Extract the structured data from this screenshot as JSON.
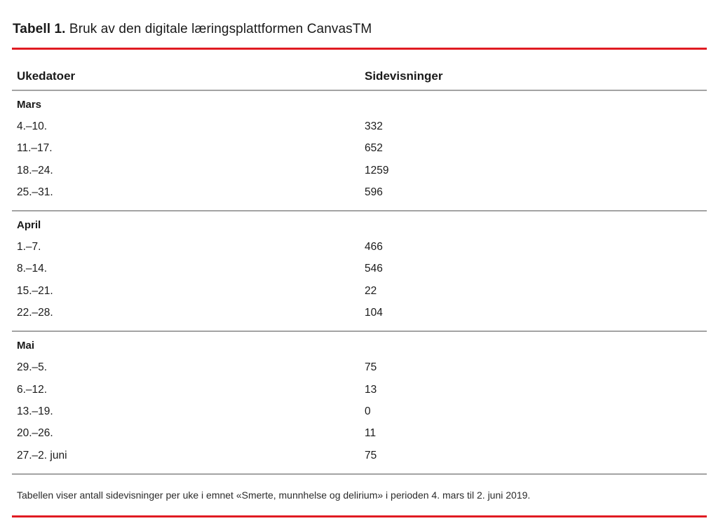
{
  "title": {
    "label": "Tabell 1.",
    "rest": "Bruk av den digitale læringsplattformen CanvasTM"
  },
  "table": {
    "headers": [
      "Ukedatoer",
      "Sidevisninger"
    ],
    "sections": [
      {
        "name": "Mars",
        "rows": [
          {
            "dates": "4.–10.",
            "views": "332"
          },
          {
            "dates": "11.–17.",
            "views": "652"
          },
          {
            "dates": "18.–24.",
            "views": "1259"
          },
          {
            "dates": "25.–31.",
            "views": "596"
          }
        ]
      },
      {
        "name": "April",
        "rows": [
          {
            "dates": "1.–7.",
            "views": "466"
          },
          {
            "dates": "8.–14.",
            "views": "546"
          },
          {
            "dates": "15.–21.",
            "views": "22"
          },
          {
            "dates": "22.–28.",
            "views": "104"
          }
        ]
      },
      {
        "name": "Mai",
        "rows": [
          {
            "dates": "29.–5.",
            "views": "75"
          },
          {
            "dates": "6.–12.",
            "views": "13"
          },
          {
            "dates": "13.–19.",
            "views": "0"
          },
          {
            "dates": "20.–26.",
            "views": "11"
          },
          {
            "dates": "27.–2. juni",
            "views": "75"
          }
        ]
      }
    ]
  },
  "caption": "Tabellen viser antall sidevisninger per uke i emnet «Smerte, munnhelse og delirium» i perioden 4. mars til 2. juni 2019.",
  "colors": {
    "accent_red": "#e01b22",
    "divider_gray": "#a3a3a3",
    "text": "#1a1a1a"
  }
}
